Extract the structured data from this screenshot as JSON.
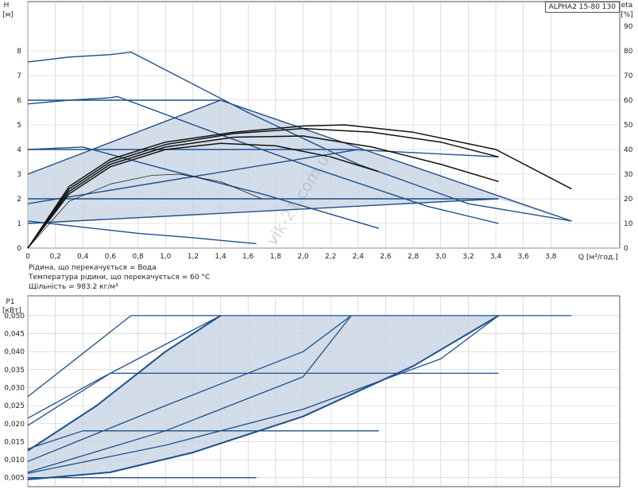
{
  "title": "ALPHA2 15-80 130",
  "watermark": "vik-21.com.ua",
  "info": {
    "line1": "Рідина, що перекачується = Вода",
    "line2": "Температура рідини, що перекачується = 60 °C",
    "line3": "Щільність = 983.2 кг/м³"
  },
  "colors": {
    "curve": "#1f4f8a",
    "fill": "#c7d5e3",
    "eff": "#111111",
    "grid": "#c8c8c8"
  },
  "chart_data": [
    {
      "type": "line",
      "id": "head",
      "ylabel_top": "H",
      "ylabel_unit": "[м]",
      "y2label_top": "eta",
      "y2label_unit": "[%]",
      "xlabel": "Q [м³/год.]",
      "xlim": [
        0,
        4.3
      ],
      "ylim": [
        0,
        10
      ],
      "y2lim": [
        0,
        100
      ],
      "x_ticks": [
        "0",
        "0,2",
        "0,4",
        "0,6",
        "0,8",
        "1,0",
        "1,2",
        "1,4",
        "1,6",
        "1,8",
        "2,0",
        "2,2",
        "2,4",
        "2,6",
        "2,8",
        "3,0",
        "3,2",
        "3,4",
        "3,6",
        "3,8"
      ],
      "y_ticks": [
        "0",
        "1",
        "2",
        "3",
        "4",
        "5",
        "6",
        "7",
        "8"
      ],
      "y2_ticks": [
        "0",
        "10",
        "20",
        "30",
        "40",
        "50",
        "60",
        "70",
        "80",
        "90"
      ],
      "grid": true,
      "area": [
        [
          0,
          3.0
        ],
        [
          1.4,
          6.0
        ],
        [
          3.95,
          1.1
        ],
        [
          3.42,
          2.0
        ],
        [
          0,
          1.0
        ]
      ],
      "series": [
        {
          "values": [
            [
              0,
              7.55
            ],
            [
              0.3,
              7.75
            ],
            [
              0.6,
              7.85
            ],
            [
              0.75,
              7.95
            ],
            [
              1.6,
              5.5
            ],
            [
              2.4,
              3.4
            ],
            [
              3.2,
              1.8
            ],
            [
              3.95,
              1.1
            ]
          ],
          "color": "curve"
        },
        {
          "values": [
            [
              0,
              5.85
            ],
            [
              0.3,
              6.0
            ],
            [
              0.6,
              6.1
            ],
            [
              0.65,
              6.15
            ],
            [
              1.3,
              4.8
            ],
            [
              2.1,
              3.2
            ],
            [
              2.9,
              1.7
            ],
            [
              3.42,
              1.0
            ]
          ],
          "color": "curve"
        },
        {
          "values": [
            [
              0,
              4.0
            ],
            [
              0.2,
              4.05
            ],
            [
              0.4,
              4.1
            ],
            [
              1.0,
              3.2
            ],
            [
              1.7,
              2.2
            ],
            [
              2.55,
              0.8
            ]
          ],
          "color": "curve"
        },
        {
          "values": [
            [
              0,
              1.1
            ],
            [
              0.4,
              0.85
            ],
            [
              0.8,
              0.6
            ],
            [
              1.2,
              0.42
            ],
            [
              1.66,
              0.18
            ]
          ],
          "color": "curve"
        },
        {
          "values": [
            [
              0,
              6.0
            ],
            [
              1.4,
              6.0
            ]
          ],
          "color": "curve"
        },
        {
          "values": [
            [
              1.4,
              6.0
            ],
            [
              3.95,
              1.1
            ]
          ],
          "color": "curve"
        },
        {
          "values": [
            [
              0,
              4.0
            ],
            [
              2.35,
              4.0
            ],
            [
              3.42,
              3.7
            ]
          ],
          "color": "curve"
        },
        {
          "values": [
            [
              0,
              2.0
            ],
            [
              3.42,
              2.0
            ]
          ],
          "color": "curve"
        },
        {
          "values": [
            [
              0,
              3.0
            ],
            [
              1.4,
              6.0
            ]
          ],
          "color": "curve"
        },
        {
          "values": [
            [
              0,
              1.0
            ],
            [
              3.42,
              2.0
            ]
          ],
          "color": "curve"
        },
        {
          "values": [
            [
              0,
              1.8
            ],
            [
              2.4,
              4.0
            ]
          ],
          "color": "curve"
        },
        {
          "values": [
            [
              0,
              0
            ],
            [
              0.3,
              25
            ],
            [
              0.6,
              36
            ],
            [
              1.0,
              43
            ],
            [
              1.5,
              47
            ],
            [
              2.0,
              49.5
            ],
            [
              2.3,
              50
            ],
            [
              2.8,
              47
            ],
            [
              3.4,
              40
            ],
            [
              3.95,
              24
            ]
          ],
          "color": "eff",
          "axis": "y2"
        },
        {
          "values": [
            [
              0,
              0
            ],
            [
              0.3,
              24
            ],
            [
              0.6,
              35
            ],
            [
              1.0,
              42
            ],
            [
              1.5,
              46.5
            ],
            [
              2.0,
              48.5
            ],
            [
              2.5,
              47
            ],
            [
              3.0,
              43
            ],
            [
              3.42,
              37
            ]
          ],
          "color": "eff",
          "axis": "y2"
        },
        {
          "values": [
            [
              0,
              0
            ],
            [
              0.3,
              23
            ],
            [
              0.6,
              34
            ],
            [
              1.0,
              41
            ],
            [
              1.5,
              45
            ],
            [
              2.0,
              45.5
            ],
            [
              2.5,
              41
            ],
            [
              3.0,
              34
            ],
            [
              3.42,
              27
            ]
          ],
          "color": "eff",
          "axis": "y2"
        },
        {
          "values": [
            [
              0,
              0
            ],
            [
              0.3,
              22
            ],
            [
              0.6,
              33
            ],
            [
              1.0,
              40
            ],
            [
              1.4,
              42.5
            ],
            [
              1.8,
              41.5
            ],
            [
              2.2,
              37
            ],
            [
              2.55,
              31
            ]
          ],
          "color": "eff",
          "axis": "y2"
        },
        {
          "values": [
            [
              0,
              0
            ],
            [
              0.3,
              19
            ],
            [
              0.6,
              26
            ],
            [
              0.9,
              29.5
            ],
            [
              1.1,
              30
            ],
            [
              1.4,
              27
            ],
            [
              1.7,
              20
            ]
          ],
          "color": "eff",
          "axis": "y2",
          "thin": true
        }
      ]
    },
    {
      "type": "line",
      "id": "power",
      "ylabel_top": "P1",
      "ylabel_unit": "[кВт]",
      "xlim": [
        0,
        4.3
      ],
      "ylim": [
        0.0025,
        0.0555
      ],
      "y_ticks": [
        "0,005",
        "0,010",
        "0,015",
        "0,020",
        "0,025",
        "0,030",
        "0,035",
        "0,040",
        "0,045",
        "0,050"
      ],
      "y_tick_values": [
        0.005,
        0.01,
        0.015,
        0.02,
        0.025,
        0.03,
        0.035,
        0.04,
        0.045,
        0.05
      ],
      "grid": true,
      "area": [
        [
          0,
          0.0125
        ],
        [
          0.5,
          0.025
        ],
        [
          1.0,
          0.04
        ],
        [
          1.4,
          0.05
        ],
        [
          3.42,
          0.05
        ],
        [
          2.8,
          0.036
        ],
        [
          2.0,
          0.022
        ],
        [
          1.2,
          0.012
        ],
        [
          0.6,
          0.0065
        ],
        [
          0,
          0.0045
        ]
      ],
      "series": [
        {
          "values": [
            [
              0,
              0.0275
            ],
            [
              0.75,
              0.05
            ],
            [
              3.95,
              0.05
            ]
          ],
          "color": "curve"
        },
        {
          "values": [
            [
              0,
              0.0215
            ],
            [
              0.5,
              0.032
            ],
            [
              1.0,
              0.042
            ],
            [
              1.4,
              0.05
            ]
          ],
          "color": "curve"
        },
        {
          "values": [
            [
              0,
              0.0125
            ],
            [
              0.5,
              0.025
            ],
            [
              1.0,
              0.04
            ],
            [
              1.4,
              0.05
            ]
          ],
          "color": "curve",
          "bold": true
        },
        {
          "values": [
            [
              0,
              0.0095
            ],
            [
              1.0,
              0.025
            ],
            [
              2.0,
              0.04
            ],
            [
              2.35,
              0.05
            ]
          ],
          "color": "curve"
        },
        {
          "values": [
            [
              0,
              0.0065
            ],
            [
              1.0,
              0.018
            ],
            [
              2.0,
              0.033
            ],
            [
              2.35,
              0.05
            ]
          ],
          "color": "curve"
        },
        {
          "values": [
            [
              0,
              0.0062
            ],
            [
              1.0,
              0.014
            ],
            [
              2.0,
              0.024
            ],
            [
              3.0,
              0.038
            ],
            [
              3.42,
              0.05
            ]
          ],
          "color": "curve"
        },
        {
          "values": [
            [
              0,
              0.0045
            ],
            [
              0.6,
              0.0065
            ],
            [
              1.2,
              0.012
            ],
            [
              2.0,
              0.022
            ],
            [
              2.8,
              0.036
            ],
            [
              3.42,
              0.05
            ]
          ],
          "color": "curve",
          "bold": true
        },
        {
          "values": [
            [
              0,
              0.0195
            ],
            [
              0.6,
              0.034
            ],
            [
              3.42,
              0.034
            ]
          ],
          "color": "curve"
        },
        {
          "values": [
            [
              0,
              0.013
            ],
            [
              0.4,
              0.018
            ],
            [
              2.55,
              0.018
            ]
          ],
          "color": "curve"
        },
        {
          "values": [
            [
              0,
              0.005
            ],
            [
              1.66,
              0.005
            ]
          ],
          "color": "curve"
        }
      ]
    }
  ]
}
